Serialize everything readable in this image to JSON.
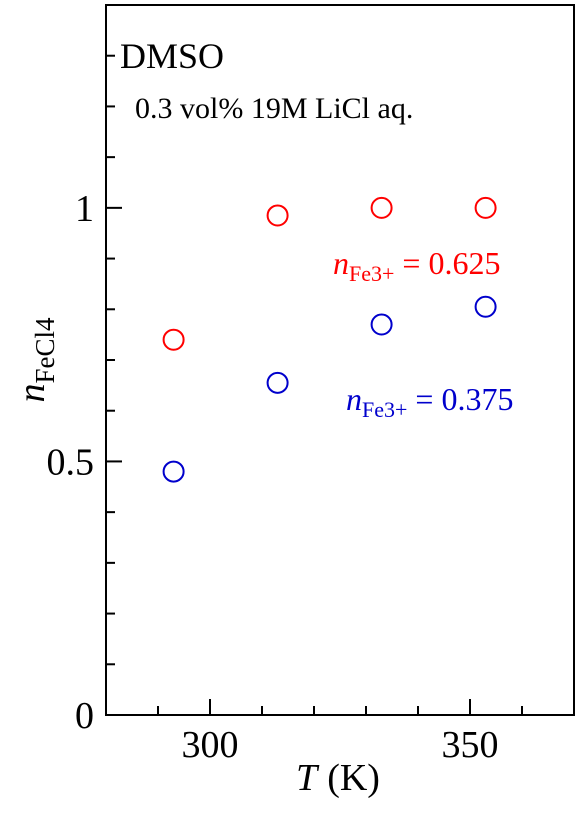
{
  "chart_data": {
    "type": "scatter",
    "title": "",
    "annotations": {
      "solvent": "DMSO",
      "condition": "0.3 vol% 19M LiCl aq."
    },
    "xlabel": {
      "symbol": "T",
      "unit": "(K)"
    },
    "ylabel": {
      "symbol": "n",
      "subscript": "FeCl4"
    },
    "xlim": [
      280,
      370
    ],
    "ylim": [
      0,
      1.4
    ],
    "xticks": [
      300,
      350
    ],
    "xticklabels": [
      "300",
      "350"
    ],
    "yticks": [
      0,
      0.5,
      1
    ],
    "yticklabels": [
      "0",
      "0.5",
      "1"
    ],
    "grid": false,
    "series": [
      {
        "label": {
          "symbol": "n",
          "subscript": "Fe3+",
          "value": "= 0.625"
        },
        "color": "#ff0000",
        "marker": "open-circle",
        "points": [
          {
            "x": 293,
            "y": 0.74
          },
          {
            "x": 313,
            "y": 0.985
          },
          {
            "x": 333,
            "y": 1.0
          },
          {
            "x": 353,
            "y": 1.0
          }
        ]
      },
      {
        "label": {
          "symbol": "n",
          "subscript": "Fe3+",
          "value": "= 0.375"
        },
        "color": "#0000cc",
        "marker": "open-circle",
        "points": [
          {
            "x": 293,
            "y": 0.48
          },
          {
            "x": 313,
            "y": 0.655
          },
          {
            "x": 333,
            "y": 0.77
          },
          {
            "x": 353,
            "y": 0.805
          }
        ]
      }
    ]
  }
}
